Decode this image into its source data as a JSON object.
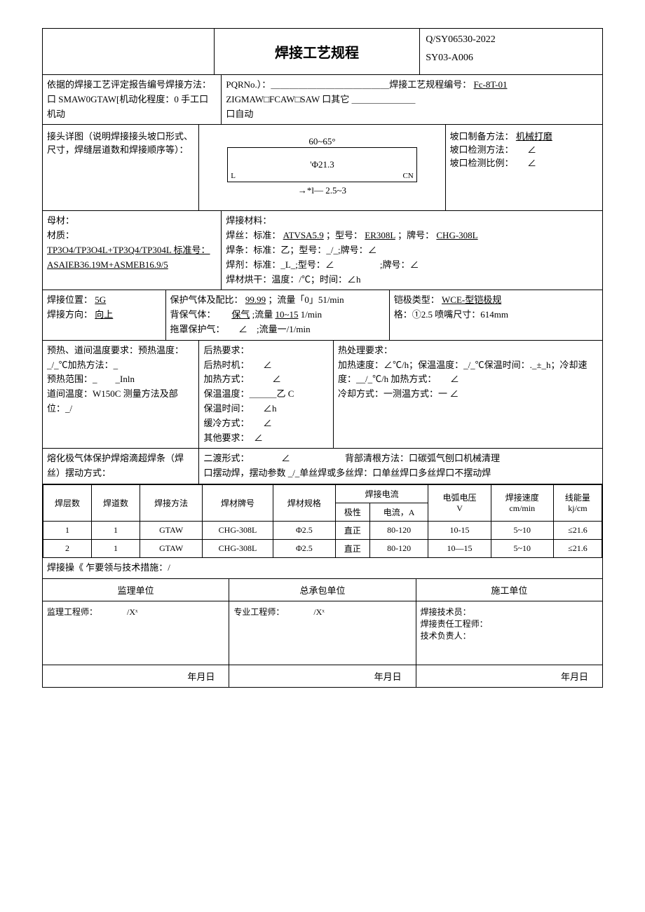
{
  "header": {
    "title": "焊接工艺规程",
    "code1": "Q/SY06530-2022",
    "code2": "SY03-A006"
  },
  "pqr_block": {
    "left": "依据的焊接工艺评定报告编号焊接方法：口 SMAW0GTAW[机动化程度：0 手工口机动",
    "right_line1": "PQRNo.）：＿＿＿＿＿＿＿＿＿＿＿＿＿焊接工艺规程编号：",
    "wps_no": "Fc-8T-01",
    "right_line2": "ZIGMAW□FCAW□SAW 口其它 ＿＿＿＿＿＿＿",
    "right_line3": "口自动"
  },
  "joint": {
    "left": "接头详图（说明焊接接头坡口形式、尺寸，焊缝层道数和焊接顺序等）：",
    "angle": "60~65°",
    "dia": "'Φ21.3",
    "L": "L",
    "CN": "CN",
    "gap": "→*l— 2.5~3",
    "prep_method_label": "坡口制备方法：",
    "prep_method": "机械打磨",
    "inspect_method": "坡口检测方法：　　∠",
    "inspect_ratio": "坡口检测比例：　　∠"
  },
  "base_filler": {
    "base_label": "母材：",
    "base_mat": "材质：",
    "base_spec": "TP3O4/TP3O4L+TP3Q4/TP304L 标准号：ASAIEB36.19M+ASMEB16.9/5",
    "filler_label": "焊接材料：",
    "wire": "焊丝：标准：",
    "wire_std": "ATVSA5.9",
    "wire_model_lbl": "；型号：",
    "wire_model": "ER308L",
    "wire_brand_lbl": "；牌号：",
    "wire_brand": "CHG-308L",
    "rod": "焊条：标准：乙；型号：_/_;牌号：∠",
    "flux": "焊剂：标准：_L_;型号：∠　　　　　;牌号：∠",
    "bake": "焊材烘干：温度：/℃；时间：∠h"
  },
  "position_gas": {
    "pos_label": "焊接位置：",
    "pos": "5G",
    "dir_label": "焊接方向：",
    "dir": "向上",
    "shield_label": "保护气体及配比：",
    "shield": "99.99",
    "shield_flow": "；流量「0」51/min",
    "back_label": "背保气体：　　",
    "back": "保气",
    "back_flow": ";流量",
    "back_flow_v": "10~15",
    "back_flow_u": "1/min",
    "drag": "拖罩保护气：　　∠　;流量一/1/min",
    "tung_label": "铠极类型：",
    "tung": "WCE-型铠极规",
    "tung_spec": "格：①2.5 喷嘴尺寸：614mm"
  },
  "preheat": {
    "col1": "预热、道间温度要求：预热温度：_/_℃加热方法：_\n预热范围：_　　_Inln\n道间温度：W150C 测量方法及部位：_/",
    "col2_label": "后热要求：",
    "col2": "后热时机：　　∠\n加热方式：　　　∠\n保温温度：＿＿＿乙 C\n保温时间：　　∠h\n缓冷方式：　　∠\n其他要求：　∠",
    "col3_label": "热处理要求：",
    "col3": "加热速度：∠℃/h；保温温度：_/_℃保温时间：._±_h；冷却速度：__/_℃/h 加热方式：　　∠\n冷却方式：一测温方式：一 ∠"
  },
  "transfer": {
    "left": "熔化极气体保护焊熔滴超焊条（焊丝）摆动方式：",
    "right1": "二渡形式：　　　　∠　　　　　　背部清根方法：口碳弧气刨口机械清理",
    "right2": "口摆动焊，摆动参数 _/_单丝焊或多丝焊：口单丝焊口多丝焊口不摆动焊"
  },
  "params_table": {
    "headers": {
      "layer": "焊层数",
      "pass": "焊道数",
      "method": "焊接方法",
      "brand": "焊材牌号",
      "spec": "焊材规格",
      "current_group": "焊接电流",
      "polarity": "极性",
      "amp": "电流，A",
      "volt": "电弧电压\nV",
      "speed": "焊接速度\ncm/min",
      "heat": "线能量\nkj/cm"
    },
    "rows": [
      {
        "layer": "1",
        "pass": "1",
        "method": "GTAW",
        "brand": "CHG-308L",
        "spec": "Φ2.5",
        "pol": "直正",
        "amp": "80-120",
        "volt": "10-15",
        "speed": "5~10",
        "heat": "≤21.6"
      },
      {
        "layer": "2",
        "pass": "1",
        "method": "GTAW",
        "brand": "CHG-308L",
        "spec": "Φ2.5",
        "pol": "直正",
        "amp": "80-120",
        "volt": "10—15",
        "speed": "5~10",
        "heat": "≤21.6"
      }
    ]
  },
  "notes": "焊接操《 乍要领与技术措施：/",
  "sign": {
    "h1": "监理单位",
    "h2": "总承包单位",
    "h3": "施工单位",
    "s1": "监理工程师：　　　　/Xˣ",
    "s2": "专业工程师：　　　　/Xˣ",
    "s3a": "焊接技术员：",
    "s3b": "焊接责任工程师：",
    "s3c": "技术负责人：",
    "date": "年月日"
  }
}
